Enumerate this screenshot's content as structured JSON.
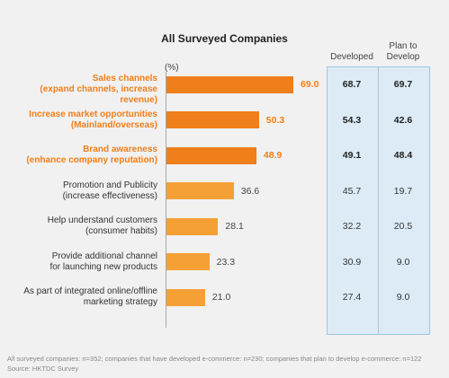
{
  "chart_data": {
    "type": "bar",
    "title": "All Surveyed Companies",
    "unit": "(%)",
    "xlim": [
      0,
      80
    ],
    "categories": [
      "Sales channels (expand channels, increase revenue)",
      "Increase market opportunities (Mainland/overseas)",
      "Brand awareness (enhance company reputation)",
      "Promotion and Publicity (increase effectiveness)",
      "Help understand customers (consumer habits)",
      "Provide additional channel for launching new products",
      "As part of integrated online/offline marketing strategy"
    ],
    "label_lines": [
      [
        "Sales channels",
        "(expand channels, increase revenue)"
      ],
      [
        "Increase market opportunities",
        "(Mainland/overseas)"
      ],
      [
        "Brand awareness",
        "(enhance company reputation)"
      ],
      [
        "Promotion and Publicity",
        "(increase effectiveness)"
      ],
      [
        "Help understand customers",
        "(consumer habits)"
      ],
      [
        "Provide additional channel",
        "for launching new products"
      ],
      [
        "As part of integrated online/offline",
        "marketing strategy"
      ]
    ],
    "highlighted": [
      true,
      true,
      true,
      false,
      false,
      false,
      false
    ],
    "series": [
      {
        "name": "All Surveyed Companies",
        "values": [
          69.0,
          50.3,
          48.9,
          36.6,
          28.1,
          23.3,
          21.0
        ]
      }
    ],
    "table": {
      "columns": [
        "Developed",
        "Plan to Develop"
      ],
      "developed": [
        68.7,
        54.3,
        49.1,
        45.7,
        32.2,
        30.9,
        27.4
      ],
      "plan_to_develop": [
        69.7,
        42.6,
        48.4,
        19.7,
        20.5,
        9.0,
        9.0
      ]
    },
    "colors": {
      "bar_dark": "#ef7f1a",
      "bar_light": "#f5a035",
      "panel": "#dcebf5",
      "panel_border": "#9fc6df"
    }
  },
  "headers": {
    "developed": "Developed",
    "plan_line1": "Plan to",
    "plan_line2": "Develop"
  },
  "footnote": {
    "line1": "All surveyed companies: n=352; companies that have developed e-commerce: n=230; companies that plan to develop e-commerce: n=122",
    "line2": "Source: HKTDC Survey"
  }
}
